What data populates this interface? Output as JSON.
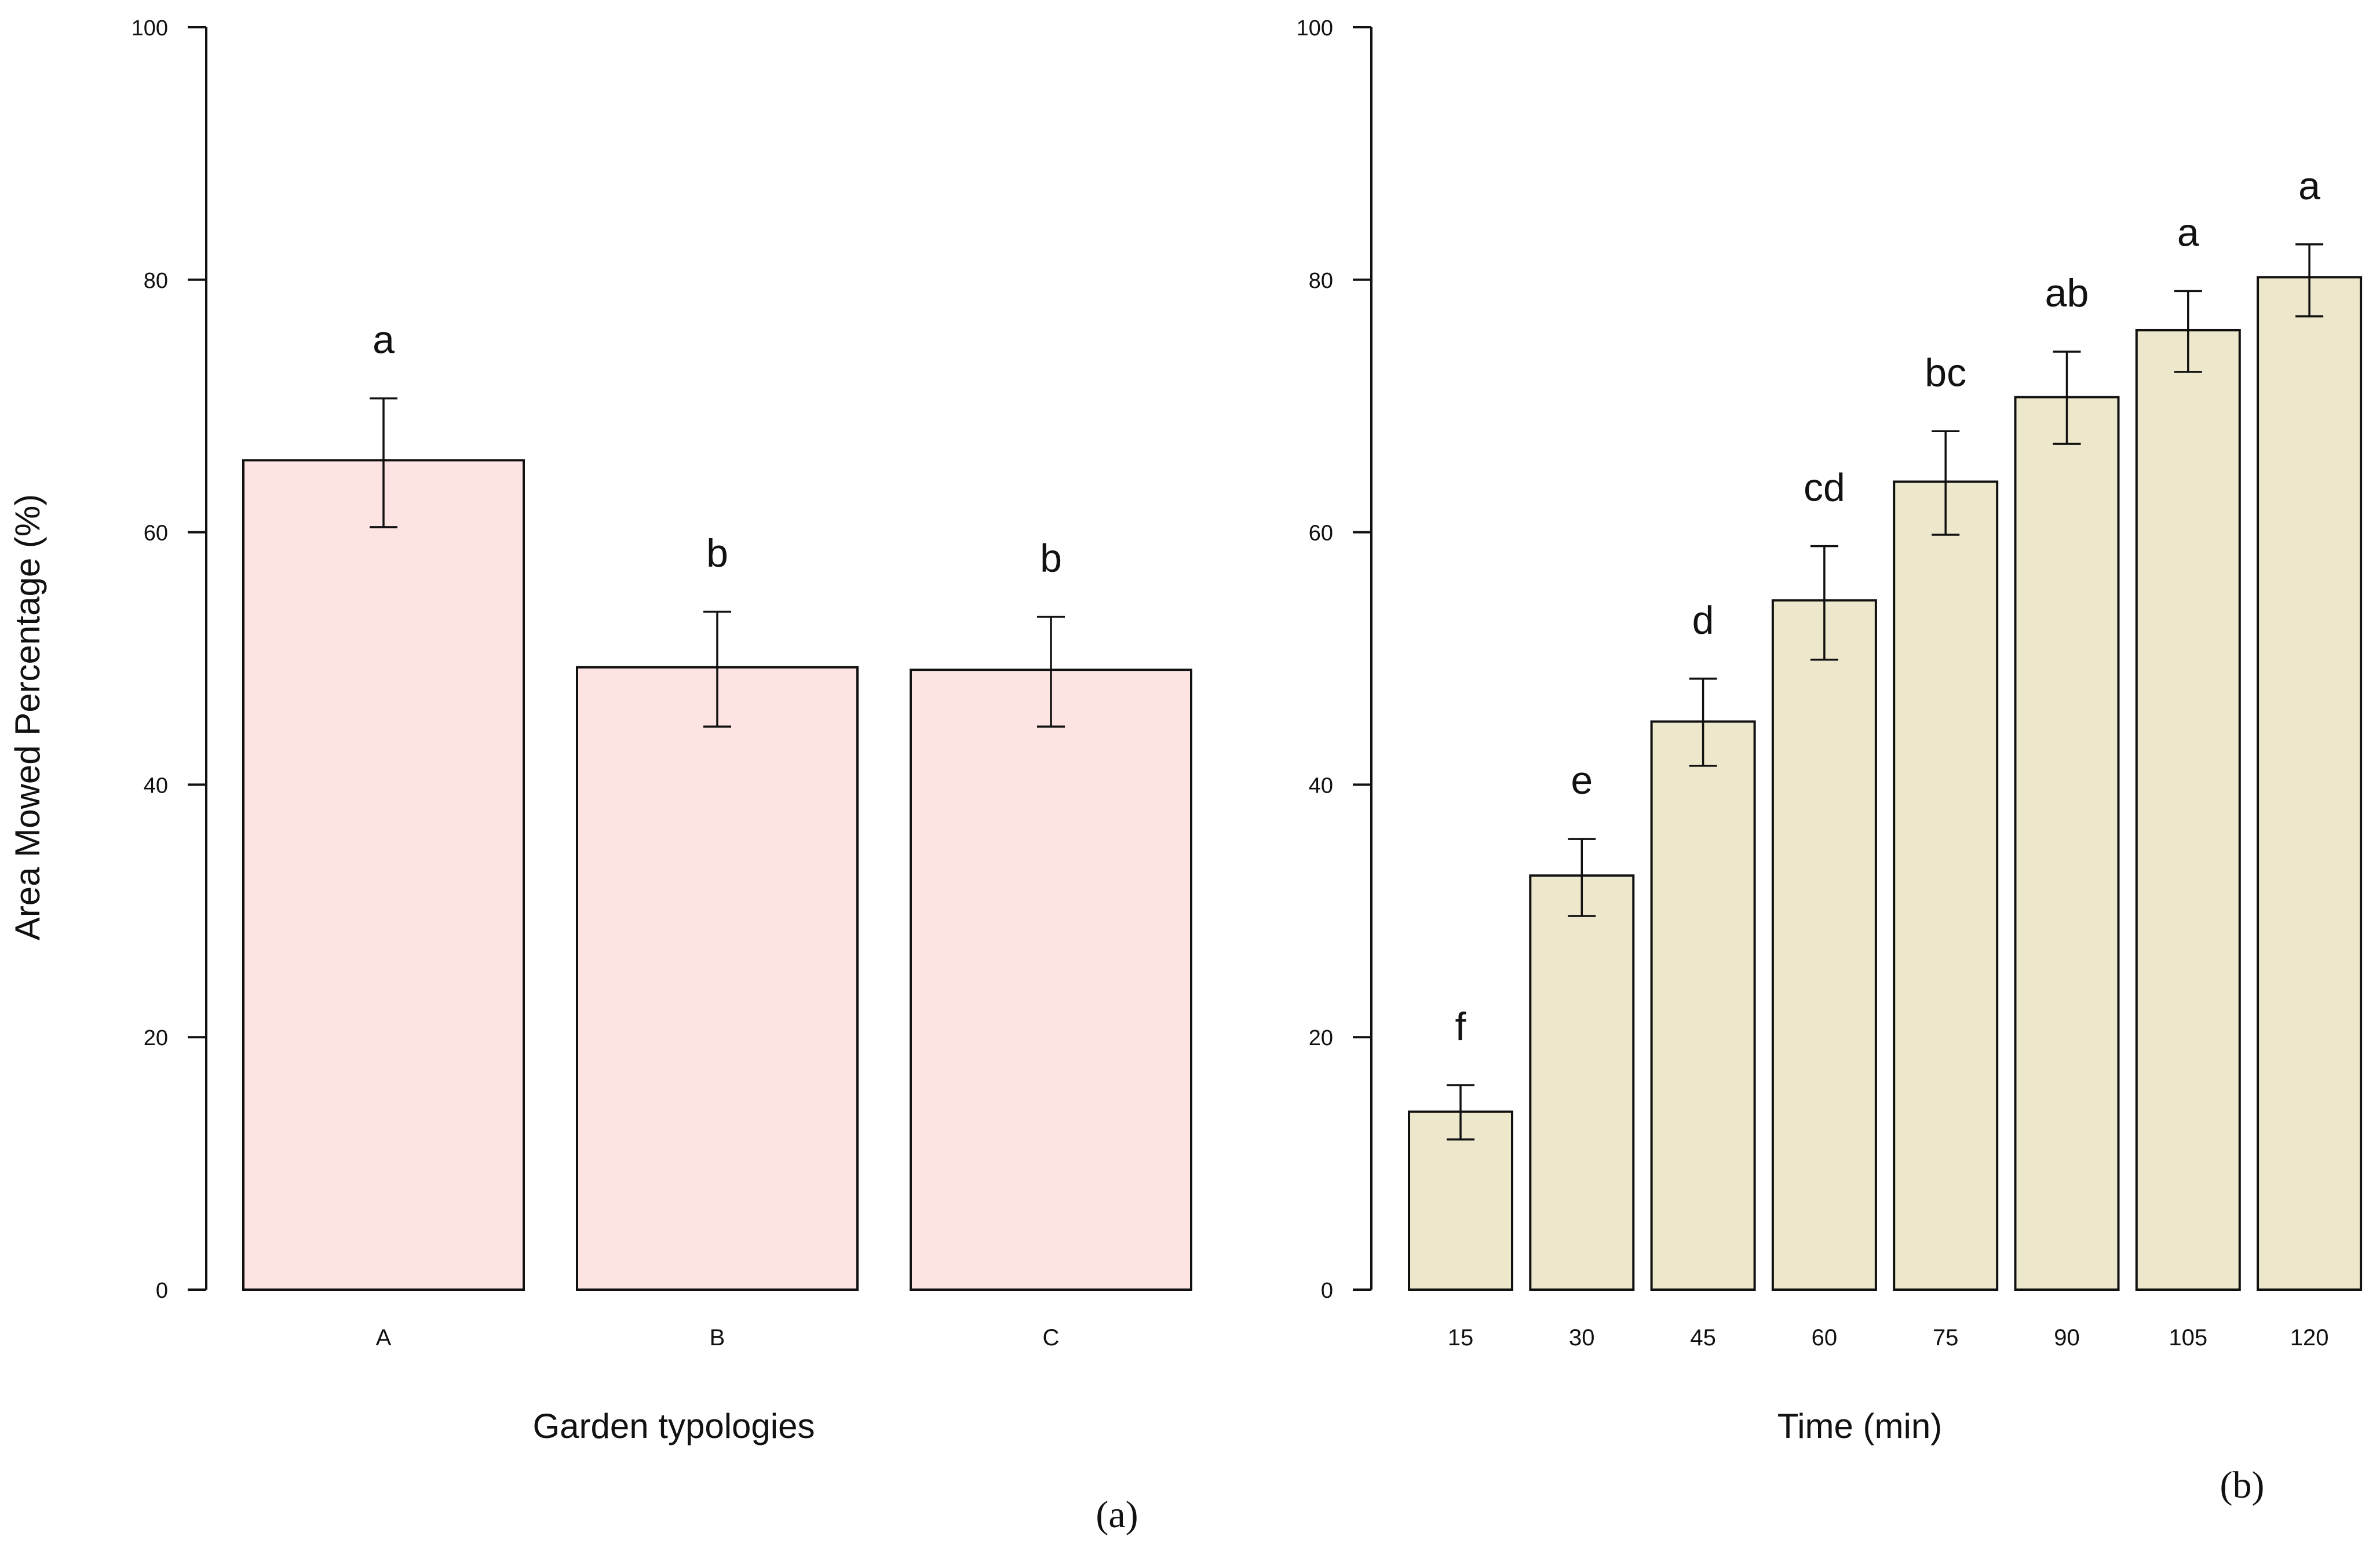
{
  "figure": {
    "ylabel": "Area Mowed Percentage (%)",
    "captions": [
      "(a)",
      "(b)"
    ]
  },
  "chart_data": [
    {
      "type": "bar",
      "panel": "(a)",
      "xlabel": "Garden typologies",
      "ylabel": "Area Mowed Percentage (%)",
      "categories": [
        "A",
        "B",
        "C"
      ],
      "values": [
        65.7,
        49.3,
        49.1
      ],
      "error_low": [
        60.4,
        44.6,
        44.6
      ],
      "error_high": [
        70.6,
        53.7,
        53.3
      ],
      "letters": [
        "a",
        "b",
        "b"
      ],
      "ylim": [
        0,
        100
      ],
      "yticks": [
        0,
        20,
        40,
        60,
        80,
        100
      ],
      "bar_color": "#fde4e2",
      "grid": false
    },
    {
      "type": "bar",
      "panel": "(b)",
      "xlabel": "Time (min)",
      "ylabel": "",
      "categories": [
        "15",
        "30",
        "45",
        "60",
        "75",
        "90",
        "105",
        "120"
      ],
      "values": [
        14.1,
        32.8,
        45.0,
        54.6,
        64.0,
        70.7,
        76.0,
        80.2
      ],
      "error_low": [
        11.9,
        29.6,
        41.5,
        49.9,
        59.8,
        67.0,
        72.7,
        77.1
      ],
      "error_high": [
        16.2,
        35.7,
        48.4,
        58.9,
        68.0,
        74.3,
        79.1,
        82.8
      ],
      "letters": [
        "f",
        "e",
        "d",
        "cd",
        "bc",
        "ab",
        "a",
        "a"
      ],
      "ylim": [
        0,
        100
      ],
      "yticks": [
        0,
        20,
        40,
        60,
        80,
        100
      ],
      "bar_color": "#ede7cb",
      "grid": false
    }
  ]
}
